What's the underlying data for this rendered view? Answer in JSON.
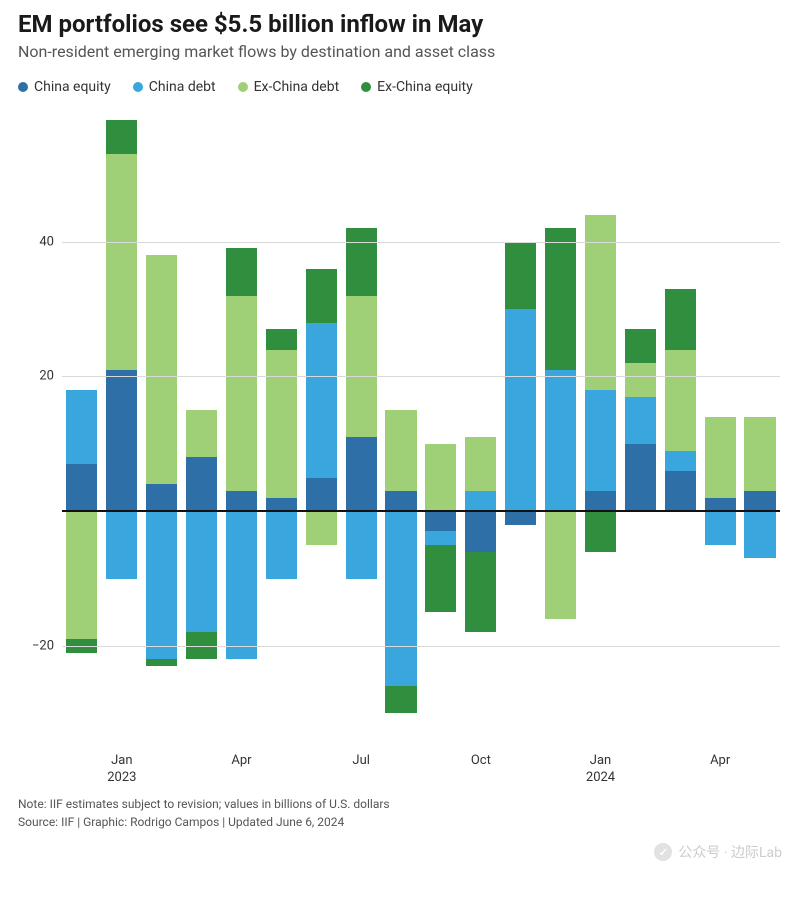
{
  "header": {
    "title": "EM portfolios see $5.5 billion inflow in May",
    "subtitle": "Non-resident emerging market flows by destination and asset class"
  },
  "legend": {
    "items": [
      {
        "label": "China equity",
        "color": "#2f6fa7"
      },
      {
        "label": "China debt",
        "color": "#39a6dd"
      },
      {
        "label": "Ex-China debt",
        "color": "#9fcf77"
      },
      {
        "label": "Ex-China equity",
        "color": "#2f8f3e"
      }
    ]
  },
  "chart": {
    "type": "stacked-bar",
    "ylim": [
      -35,
      60
    ],
    "yticks": [
      -20,
      0,
      20,
      40
    ],
    "grid_color": "#d9d9d9",
    "zero_color": "#111111",
    "background_color": "#ffffff",
    "bar_width_ratio": 0.78,
    "xticks": [
      {
        "index": 1,
        "label": "Jan",
        "year": "2023"
      },
      {
        "index": 4,
        "label": "Apr",
        "year": ""
      },
      {
        "index": 7,
        "label": "Jul",
        "year": ""
      },
      {
        "index": 10,
        "label": "Oct",
        "year": ""
      },
      {
        "index": 13,
        "label": "Jan",
        "year": "2024"
      },
      {
        "index": 16,
        "label": "Apr",
        "year": ""
      }
    ],
    "series_order": [
      "china_equity",
      "china_debt",
      "ex_china_debt",
      "ex_china_equity"
    ],
    "series_colors": {
      "china_equity": "#2f6fa7",
      "china_debt": "#39a6dd",
      "ex_china_debt": "#9fcf77",
      "ex_china_equity": "#2f8f3e"
    },
    "months": [
      {
        "m": "2022-12",
        "china_equity": 7,
        "china_debt": 11,
        "ex_china_debt": -19,
        "ex_china_equity": -2
      },
      {
        "m": "2023-01",
        "china_equity": 21,
        "china_debt": -10,
        "ex_china_debt": 32,
        "ex_china_equity": 5
      },
      {
        "m": "2023-02",
        "china_equity": 4,
        "china_debt": -22,
        "ex_china_debt": 34,
        "ex_china_equity": -1
      },
      {
        "m": "2023-03",
        "china_equity": 8,
        "china_debt": -18,
        "ex_china_debt": 7,
        "ex_china_equity": -4
      },
      {
        "m": "2023-04",
        "china_equity": 3,
        "china_debt": -22,
        "ex_china_debt": 29,
        "ex_china_equity": 7
      },
      {
        "m": "2023-05",
        "china_equity": 2,
        "china_debt": -10,
        "ex_china_debt": 22,
        "ex_china_equity": 3
      },
      {
        "m": "2023-06",
        "china_equity": 5,
        "china_debt": 23,
        "ex_china_debt": -5,
        "ex_china_equity": 8
      },
      {
        "m": "2023-07",
        "china_equity": 11,
        "china_debt": -10,
        "ex_china_debt": 21,
        "ex_china_equity": 10
      },
      {
        "m": "2023-08",
        "china_equity": 3,
        "china_debt": -26,
        "ex_china_debt": 12,
        "ex_china_equity": -4
      },
      {
        "m": "2023-09",
        "china_equity": -3,
        "china_debt": -2,
        "ex_china_debt": 10,
        "ex_china_equity": -10
      },
      {
        "m": "2023-10",
        "china_equity": -6,
        "china_debt": 3,
        "ex_china_debt": 8,
        "ex_china_equity": -12
      },
      {
        "m": "2023-11",
        "china_equity": -2,
        "china_debt": 30,
        "ex_china_debt": 0,
        "ex_china_equity": 10
      },
      {
        "m": "2023-12",
        "china_equity": 0,
        "china_debt": 21,
        "ex_china_debt": -16,
        "ex_china_equity": 21
      },
      {
        "m": "2024-01",
        "china_equity": 3,
        "china_debt": 15,
        "ex_china_debt": 26,
        "ex_china_equity": -6
      },
      {
        "m": "2024-02",
        "china_equity": 10,
        "china_debt": 7,
        "ex_china_debt": 5,
        "ex_china_equity": 5
      },
      {
        "m": "2024-03",
        "china_equity": 6,
        "china_debt": 3,
        "ex_china_debt": 15,
        "ex_china_equity": 9
      },
      {
        "m": "2024-04",
        "china_equity": 2,
        "china_debt": -5,
        "ex_china_debt": 12,
        "ex_china_equity": 0
      },
      {
        "m": "2024-05",
        "china_equity": 3,
        "china_debt": -7,
        "ex_china_debt": 11,
        "ex_china_equity": 0
      }
    ]
  },
  "footer": {
    "note": "Note: IIF estimates subject to revision; values in billions of U.S. dollars",
    "source": "Source: IIF | Graphic: Rodrigo Campos | Updated June 6, 2024"
  },
  "watermark": {
    "text": "公众号 · 边际Lab"
  }
}
